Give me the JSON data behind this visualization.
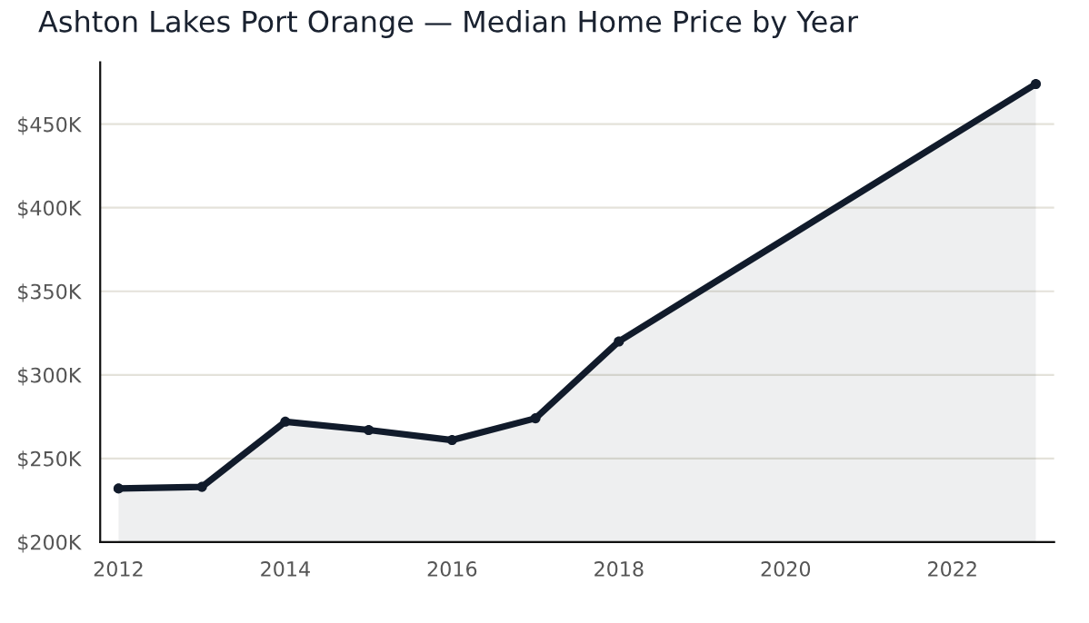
{
  "chart_data": {
    "type": "area",
    "title": "Ashton Lakes Port Orange — Median Home Price by Year",
    "x": [
      2012,
      2013,
      2014,
      2015,
      2016,
      2017,
      2018,
      2023
    ],
    "series": [
      {
        "color": "#111b2b",
        "values": [
          232,
          233,
          272,
          267,
          261,
          274,
          320,
          474
        ]
      }
    ],
    "xlim": [
      2011.78,
      2023.22
    ],
    "xticks": [
      2012,
      2014,
      2016,
      2018,
      2020,
      2022
    ],
    "ylim": [
      200,
      487
    ],
    "yticks": [
      {
        "value": 200,
        "label": "$200K"
      },
      {
        "value": 250,
        "label": "$250K"
      },
      {
        "value": 300,
        "label": "$300K"
      },
      {
        "value": 350,
        "label": "$350K"
      },
      {
        "value": 400,
        "label": "$400K"
      },
      {
        "value": 450,
        "label": "$450K"
      }
    ],
    "grid": "y",
    "marker": "circle",
    "line_style": "solid",
    "legend": false
  }
}
